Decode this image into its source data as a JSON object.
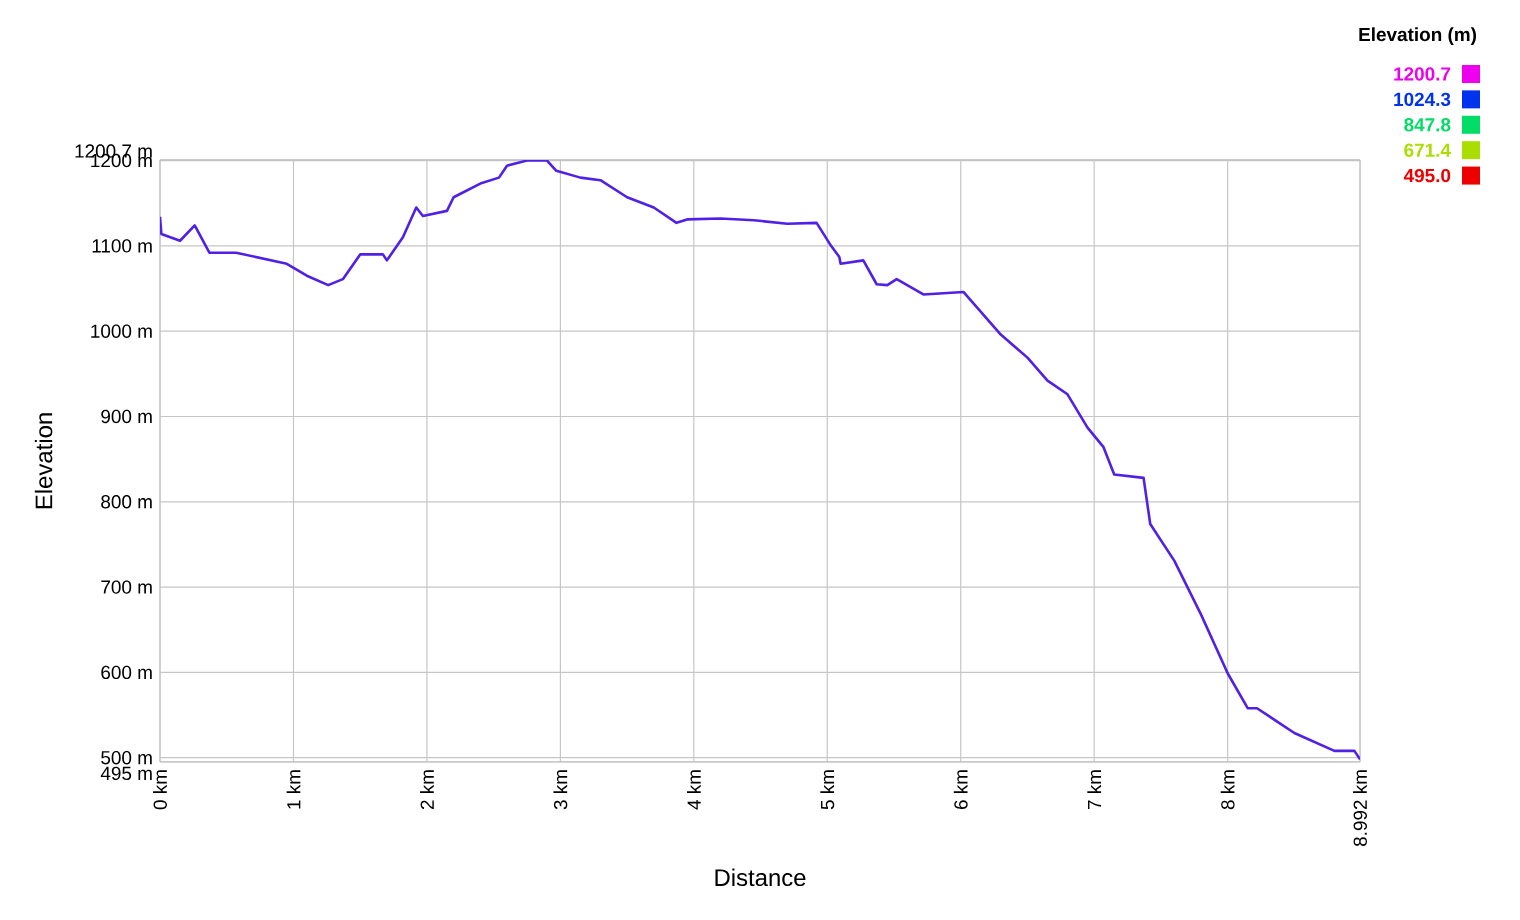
{
  "chart_data": {
    "type": "line",
    "xlabel": "Distance",
    "ylabel": "Elevation",
    "clabel": "Elevation (m)",
    "x": [
      0,
      0.01,
      0.15,
      0.26,
      0.37,
      0.57,
      0.95,
      1.1,
      1.26,
      1.37,
      1.5,
      1.67,
      1.7,
      1.82,
      1.92,
      1.97,
      2.15,
      2.2,
      2.4,
      2.54,
      2.6,
      2.75,
      2.9,
      2.97,
      3.15,
      3.3,
      3.5,
      3.7,
      3.87,
      3.95,
      4.2,
      4.45,
      4.7,
      4.92,
      5.02,
      5.09,
      5.1,
      5.27,
      5.37,
      5.45,
      5.52,
      5.72,
      6.02,
      6.3,
      6.5,
      6.65,
      6.8,
      6.95,
      7.07,
      7.15,
      7.37,
      7.42,
      7.6,
      7.8,
      8.0,
      8.15,
      8.22,
      8.5,
      8.8,
      8.95,
      8.992
    ],
    "values": [
      1134,
      1114,
      1106,
      1124,
      1092,
      1092,
      1079,
      1065,
      1054,
      1061,
      1090,
      1090,
      1083,
      1110,
      1145,
      1135,
      1141,
      1157,
      1173,
      1180,
      1194,
      1200,
      1200,
      1188,
      1180,
      1177,
      1157,
      1145,
      1127,
      1131,
      1132,
      1130,
      1126,
      1127,
      1102,
      1087,
      1079,
      1083,
      1055,
      1054,
      1061,
      1043,
      1046,
      996,
      969,
      942,
      926,
      887,
      864,
      832,
      828,
      774,
      731,
      668,
      599,
      558,
      558,
      529,
      508,
      508,
      498
    ],
    "clim": [
      495,
      1200.7
    ],
    "cticks": [
      {
        "value": 495,
        "label": "495.0"
      },
      671.4,
      847.8,
      1024.3,
      1200.7
    ],
    "xlim": [
      0,
      8.992
    ],
    "xticks": [
      {
        "value": 0,
        "label": "0 km"
      },
      {
        "value": 1,
        "label": "1 km"
      },
      {
        "value": 2,
        "label": "2 km"
      },
      {
        "value": 3,
        "label": "3 km"
      },
      {
        "value": 4,
        "label": "4 km"
      },
      {
        "value": 5,
        "label": "5 km"
      },
      {
        "value": 6,
        "label": "6 km"
      },
      {
        "value": 7,
        "label": "7 km"
      },
      {
        "value": 8,
        "label": "8 km"
      },
      {
        "value": 8.992,
        "label": "8.992 km"
      }
    ],
    "ylim": [
      495,
      1200.7
    ],
    "yticks": [
      {
        "value": 495,
        "label": "495 m"
      },
      {
        "value": 500,
        "label": "500 m"
      },
      {
        "value": 600,
        "label": "600 m"
      },
      {
        "value": 700,
        "label": "700 m"
      },
      {
        "value": 800,
        "label": "800 m"
      },
      {
        "value": 900,
        "label": "900 m"
      },
      {
        "value": 1000,
        "label": "1000 m"
      },
      {
        "value": 1100,
        "label": "1100 m"
      },
      {
        "value": 1200,
        "label": "1200 m"
      },
      {
        "value": 1200.7,
        "label": "1200.7 m"
      }
    ],
    "grid": true,
    "marker": "none",
    "line_style": "solid"
  }
}
